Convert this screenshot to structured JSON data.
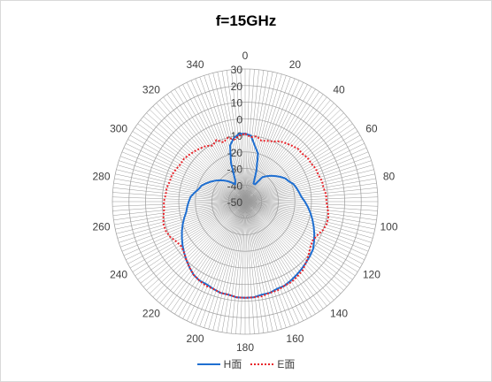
{
  "chart_data": {
    "type": "line",
    "subtype": "radar",
    "title": "f=15GHz",
    "angular_ticks": [
      "0",
      "20",
      "40",
      "60",
      "80",
      "100",
      "120",
      "140",
      "160",
      "180",
      "200",
      "220",
      "240",
      "260",
      "280",
      "300",
      "320",
      "340"
    ],
    "radial_ticks": [
      "30",
      "20",
      "10",
      "0",
      "-10",
      "-20",
      "-30",
      "-40",
      "-50"
    ],
    "rlim": [
      -50,
      30
    ],
    "angular_step_deg": 2,
    "grid": true,
    "legend_position": "bottom",
    "series": [
      {
        "name": "H面",
        "color": "#1f6fd1",
        "line_style": "solid",
        "points": [
          [
            0,
            -9
          ],
          [
            5,
            -10
          ],
          [
            10,
            -16
          ],
          [
            15,
            -20
          ],
          [
            20,
            -30
          ],
          [
            25,
            -38
          ],
          [
            30,
            -38
          ],
          [
            35,
            -32
          ],
          [
            40,
            -30
          ],
          [
            45,
            -28
          ],
          [
            50,
            -26
          ],
          [
            55,
            -24
          ],
          [
            60,
            -22
          ],
          [
            65,
            -21
          ],
          [
            70,
            -19
          ],
          [
            75,
            -18
          ],
          [
            80,
            -17
          ],
          [
            85,
            -16
          ],
          [
            90,
            -14
          ],
          [
            95,
            -12
          ],
          [
            100,
            -10
          ],
          [
            105,
            -8
          ],
          [
            110,
            -6
          ],
          [
            115,
            -4
          ],
          [
            120,
            -2
          ],
          [
            125,
            0
          ],
          [
            130,
            1
          ],
          [
            135,
            2
          ],
          [
            140,
            3
          ],
          [
            145,
            4
          ],
          [
            150,
            5
          ],
          [
            155,
            6
          ],
          [
            160,
            6
          ],
          [
            165,
            7
          ],
          [
            170,
            7
          ],
          [
            175,
            8
          ],
          [
            180,
            8
          ],
          [
            185,
            8
          ],
          [
            190,
            7
          ],
          [
            195,
            7
          ],
          [
            200,
            6
          ],
          [
            205,
            5
          ],
          [
            210,
            5
          ],
          [
            215,
            4
          ],
          [
            220,
            2
          ],
          [
            225,
            0
          ],
          [
            230,
            -2
          ],
          [
            235,
            -4
          ],
          [
            240,
            -6
          ],
          [
            245,
            -8
          ],
          [
            250,
            -10
          ],
          [
            255,
            -12
          ],
          [
            260,
            -14
          ],
          [
            265,
            -15
          ],
          [
            270,
            -16
          ],
          [
            275,
            -17
          ],
          [
            280,
            -19
          ],
          [
            285,
            -21
          ],
          [
            290,
            -22
          ],
          [
            295,
            -24
          ],
          [
            300,
            -26
          ],
          [
            305,
            -28
          ],
          [
            310,
            -30
          ],
          [
            315,
            -32
          ],
          [
            320,
            -34
          ],
          [
            325,
            -36
          ],
          [
            330,
            -38
          ],
          [
            335,
            -36
          ],
          [
            340,
            -25
          ],
          [
            345,
            -15
          ],
          [
            350,
            -11
          ],
          [
            355,
            -9
          ]
        ]
      },
      {
        "name": "E面",
        "color": "#e8242a",
        "line_style": "dotted",
        "points": [
          [
            0,
            -9
          ],
          [
            5,
            -11
          ],
          [
            10,
            -10
          ],
          [
            15,
            -12
          ],
          [
            20,
            -11
          ],
          [
            25,
            -10
          ],
          [
            30,
            -8
          ],
          [
            35,
            -7
          ],
          [
            40,
            -6
          ],
          [
            45,
            -5
          ],
          [
            50,
            -5
          ],
          [
            55,
            -4
          ],
          [
            60,
            -4
          ],
          [
            65,
            -3
          ],
          [
            70,
            -3
          ],
          [
            75,
            -2
          ],
          [
            80,
            -2
          ],
          [
            85,
            -1
          ],
          [
            90,
            -1
          ],
          [
            95,
            0
          ],
          [
            100,
            1
          ],
          [
            105,
            1
          ],
          [
            110,
            0
          ],
          [
            115,
            -2
          ],
          [
            120,
            -3
          ],
          [
            125,
            -2
          ],
          [
            130,
            0
          ],
          [
            135,
            2
          ],
          [
            140,
            4
          ],
          [
            145,
            5
          ],
          [
            150,
            6
          ],
          [
            155,
            6
          ],
          [
            160,
            7
          ],
          [
            165,
            7
          ],
          [
            170,
            8
          ],
          [
            175,
            8
          ],
          [
            180,
            8
          ],
          [
            185,
            8
          ],
          [
            190,
            7
          ],
          [
            195,
            7
          ],
          [
            200,
            6
          ],
          [
            205,
            6
          ],
          [
            210,
            5
          ],
          [
            215,
            4
          ],
          [
            220,
            2
          ],
          [
            225,
            0
          ],
          [
            230,
            -2
          ],
          [
            235,
            -3
          ],
          [
            240,
            -2
          ],
          [
            245,
            0
          ],
          [
            250,
            1
          ],
          [
            255,
            1
          ],
          [
            260,
            0
          ],
          [
            265,
            -1
          ],
          [
            270,
            -1
          ],
          [
            275,
            -2
          ],
          [
            280,
            -2
          ],
          [
            285,
            -3
          ],
          [
            290,
            -3
          ],
          [
            295,
            -4
          ],
          [
            300,
            -5
          ],
          [
            305,
            -5
          ],
          [
            310,
            -6
          ],
          [
            315,
            -7
          ],
          [
            320,
            -8
          ],
          [
            325,
            -9
          ],
          [
            330,
            -11
          ],
          [
            335,
            -9
          ],
          [
            340,
            -12
          ],
          [
            345,
            -10
          ],
          [
            350,
            -12
          ],
          [
            355,
            -10
          ]
        ]
      }
    ]
  }
}
